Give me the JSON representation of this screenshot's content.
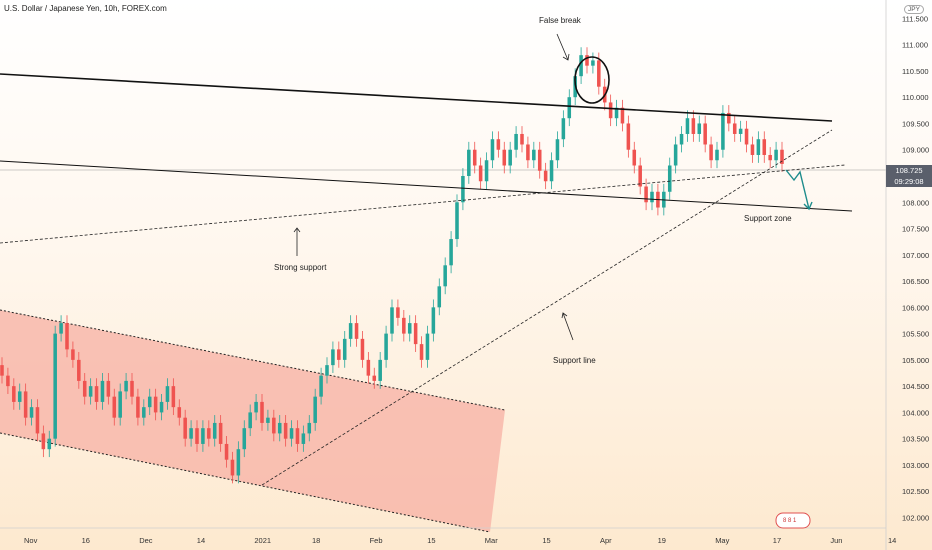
{
  "header": {
    "symbol_title": "U.S. Dollar / Japanese Yen, 10h, FOREX.com"
  },
  "currency_badge": "JPY",
  "current_price": {
    "value": "108.725",
    "countdown": "09:29:08"
  },
  "widget_text": "8  8     1",
  "chart_data": {
    "type": "candlestick",
    "title": "U.S. Dollar / Japanese Yen, 10h, FOREX.com",
    "ylim": [
      101.8,
      111.85
    ],
    "y_ticks": [
      "111.500",
      "111.000",
      "110.500",
      "110.000",
      "109.500",
      "109.000",
      "108.500",
      "108.000",
      "107.500",
      "107.000",
      "106.500",
      "106.000",
      "105.500",
      "105.000",
      "104.500",
      "104.000",
      "103.500",
      "103.000",
      "102.500",
      "102.000"
    ],
    "x_ticks": [
      "Nov",
      "16",
      "Dec",
      "14",
      "2021",
      "18",
      "Feb",
      "15",
      "Mar",
      "15",
      "Apr",
      "19",
      "May",
      "17",
      "Jun",
      "14"
    ],
    "grid": false,
    "series": [
      {
        "values": [
          {
            "o": 104.9,
            "c": 104.7
          },
          {
            "o": 104.7,
            "c": 104.5
          },
          {
            "o": 104.5,
            "c": 104.2
          },
          {
            "o": 104.2,
            "c": 104.4
          },
          {
            "o": 104.4,
            "c": 103.9
          },
          {
            "o": 103.9,
            "c": 104.1
          },
          {
            "o": 104.1,
            "c": 103.6
          },
          {
            "o": 103.6,
            "c": 103.3
          },
          {
            "o": 103.3,
            "c": 103.5
          },
          {
            "o": 103.5,
            "c": 105.5
          },
          {
            "o": 105.5,
            "c": 105.7
          },
          {
            "o": 105.7,
            "c": 105.2
          },
          {
            "o": 105.2,
            "c": 105.0
          },
          {
            "o": 105.0,
            "c": 104.6
          },
          {
            "o": 104.6,
            "c": 104.3
          },
          {
            "o": 104.3,
            "c": 104.5
          },
          {
            "o": 104.5,
            "c": 104.2
          },
          {
            "o": 104.2,
            "c": 104.6
          },
          {
            "o": 104.6,
            "c": 104.3
          },
          {
            "o": 104.3,
            "c": 103.9
          },
          {
            "o": 103.9,
            "c": 104.4
          },
          {
            "o": 104.4,
            "c": 104.6
          },
          {
            "o": 104.6,
            "c": 104.3
          },
          {
            "o": 104.3,
            "c": 103.9
          },
          {
            "o": 103.9,
            "c": 104.1
          },
          {
            "o": 104.1,
            "c": 104.3
          },
          {
            "o": 104.3,
            "c": 104.0
          },
          {
            "o": 104.0,
            "c": 104.2
          },
          {
            "o": 104.2,
            "c": 104.5
          },
          {
            "o": 104.5,
            "c": 104.1
          },
          {
            "o": 104.1,
            "c": 103.9
          },
          {
            "o": 103.9,
            "c": 103.5
          },
          {
            "o": 103.5,
            "c": 103.7
          },
          {
            "o": 103.7,
            "c": 103.4
          },
          {
            "o": 103.4,
            "c": 103.7
          },
          {
            "o": 103.7,
            "c": 103.5
          },
          {
            "o": 103.5,
            "c": 103.8
          },
          {
            "o": 103.8,
            "c": 103.4
          },
          {
            "o": 103.4,
            "c": 103.1
          },
          {
            "o": 103.1,
            "c": 102.8
          },
          {
            "o": 102.8,
            "c": 103.3
          },
          {
            "o": 103.3,
            "c": 103.7
          },
          {
            "o": 103.7,
            "c": 104.0
          },
          {
            "o": 104.0,
            "c": 104.2
          },
          {
            "o": 104.2,
            "c": 103.8
          },
          {
            "o": 103.8,
            "c": 103.9
          },
          {
            "o": 103.9,
            "c": 103.6
          },
          {
            "o": 103.6,
            "c": 103.8
          },
          {
            "o": 103.8,
            "c": 103.5
          },
          {
            "o": 103.5,
            "c": 103.7
          },
          {
            "o": 103.7,
            "c": 103.4
          },
          {
            "o": 103.4,
            "c": 103.6
          },
          {
            "o": 103.6,
            "c": 103.8
          },
          {
            "o": 103.8,
            "c": 104.3
          },
          {
            "o": 104.3,
            "c": 104.7
          },
          {
            "o": 104.7,
            "c": 104.9
          },
          {
            "o": 104.9,
            "c": 105.2
          },
          {
            "o": 105.2,
            "c": 105.0
          },
          {
            "o": 105.0,
            "c": 105.4
          },
          {
            "o": 105.4,
            "c": 105.7
          },
          {
            "o": 105.7,
            "c": 105.4
          },
          {
            "o": 105.4,
            "c": 105.0
          },
          {
            "o": 105.0,
            "c": 104.7
          },
          {
            "o": 104.7,
            "c": 104.6
          },
          {
            "o": 104.6,
            "c": 105.0
          },
          {
            "o": 105.0,
            "c": 105.5
          },
          {
            "o": 105.5,
            "c": 106.0
          },
          {
            "o": 106.0,
            "c": 105.8
          },
          {
            "o": 105.8,
            "c": 105.5
          },
          {
            "o": 105.5,
            "c": 105.7
          },
          {
            "o": 105.7,
            "c": 105.3
          },
          {
            "o": 105.3,
            "c": 105.0
          },
          {
            "o": 105.0,
            "c": 105.5
          },
          {
            "o": 105.5,
            "c": 106.0
          },
          {
            "o": 106.0,
            "c": 106.4
          },
          {
            "o": 106.4,
            "c": 106.8
          },
          {
            "o": 106.8,
            "c": 107.3
          },
          {
            "o": 107.3,
            "c": 108.0
          },
          {
            "o": 108.0,
            "c": 108.5
          },
          {
            "o": 108.5,
            "c": 109.0
          },
          {
            "o": 109.0,
            "c": 108.7
          },
          {
            "o": 108.7,
            "c": 108.4
          },
          {
            "o": 108.4,
            "c": 108.8
          },
          {
            "o": 108.8,
            "c": 109.2
          },
          {
            "o": 109.2,
            "c": 109.0
          },
          {
            "o": 109.0,
            "c": 108.7
          },
          {
            "o": 108.7,
            "c": 109.0
          },
          {
            "o": 109.0,
            "c": 109.3
          },
          {
            "o": 109.3,
            "c": 109.1
          },
          {
            "o": 109.1,
            "c": 108.8
          },
          {
            "o": 108.8,
            "c": 109.0
          },
          {
            "o": 109.0,
            "c": 108.6
          },
          {
            "o": 108.6,
            "c": 108.4
          },
          {
            "o": 108.4,
            "c": 108.8
          },
          {
            "o": 108.8,
            "c": 109.2
          },
          {
            "o": 109.2,
            "c": 109.6
          },
          {
            "o": 109.6,
            "c": 110.0
          },
          {
            "o": 110.0,
            "c": 110.4
          },
          {
            "o": 110.4,
            "c": 110.8
          },
          {
            "o": 110.8,
            "c": 110.6
          },
          {
            "o": 110.6,
            "c": 110.7
          },
          {
            "o": 110.7,
            "c": 110.2
          },
          {
            "o": 110.2,
            "c": 109.9
          },
          {
            "o": 109.9,
            "c": 109.6
          },
          {
            "o": 109.6,
            "c": 109.8
          },
          {
            "o": 109.8,
            "c": 109.5
          },
          {
            "o": 109.5,
            "c": 109.0
          },
          {
            "o": 109.0,
            "c": 108.7
          },
          {
            "o": 108.7,
            "c": 108.3
          },
          {
            "o": 108.3,
            "c": 108.0
          },
          {
            "o": 108.0,
            "c": 108.2
          },
          {
            "o": 108.2,
            "c": 107.9
          },
          {
            "o": 107.9,
            "c": 108.2
          },
          {
            "o": 108.2,
            "c": 108.7
          },
          {
            "o": 108.7,
            "c": 109.1
          },
          {
            "o": 109.1,
            "c": 109.3
          },
          {
            "o": 109.3,
            "c": 109.6
          },
          {
            "o": 109.6,
            "c": 109.3
          },
          {
            "o": 109.3,
            "c": 109.5
          },
          {
            "o": 109.5,
            "c": 109.1
          },
          {
            "o": 109.1,
            "c": 108.8
          },
          {
            "o": 108.8,
            "c": 109.0
          },
          {
            "o": 109.0,
            "c": 109.7
          },
          {
            "o": 109.7,
            "c": 109.5
          },
          {
            "o": 109.5,
            "c": 109.3
          },
          {
            "o": 109.3,
            "c": 109.4
          },
          {
            "o": 109.4,
            "c": 109.1
          },
          {
            "o": 109.1,
            "c": 108.9
          },
          {
            "o": 108.9,
            "c": 109.2
          },
          {
            "o": 109.2,
            "c": 108.9
          },
          {
            "o": 108.9,
            "c": 108.8
          },
          {
            "o": 108.8,
            "c": 109.0
          },
          {
            "o": 109.0,
            "c": 108.73
          }
        ]
      }
    ],
    "annotations": [
      "False break",
      "Strong support",
      "Support line",
      "Support zone"
    ]
  },
  "colors": {
    "up": "#26a69a",
    "down": "#ef5350",
    "channel_fill": "#f8b4a8",
    "axis_text": "#333333"
  }
}
